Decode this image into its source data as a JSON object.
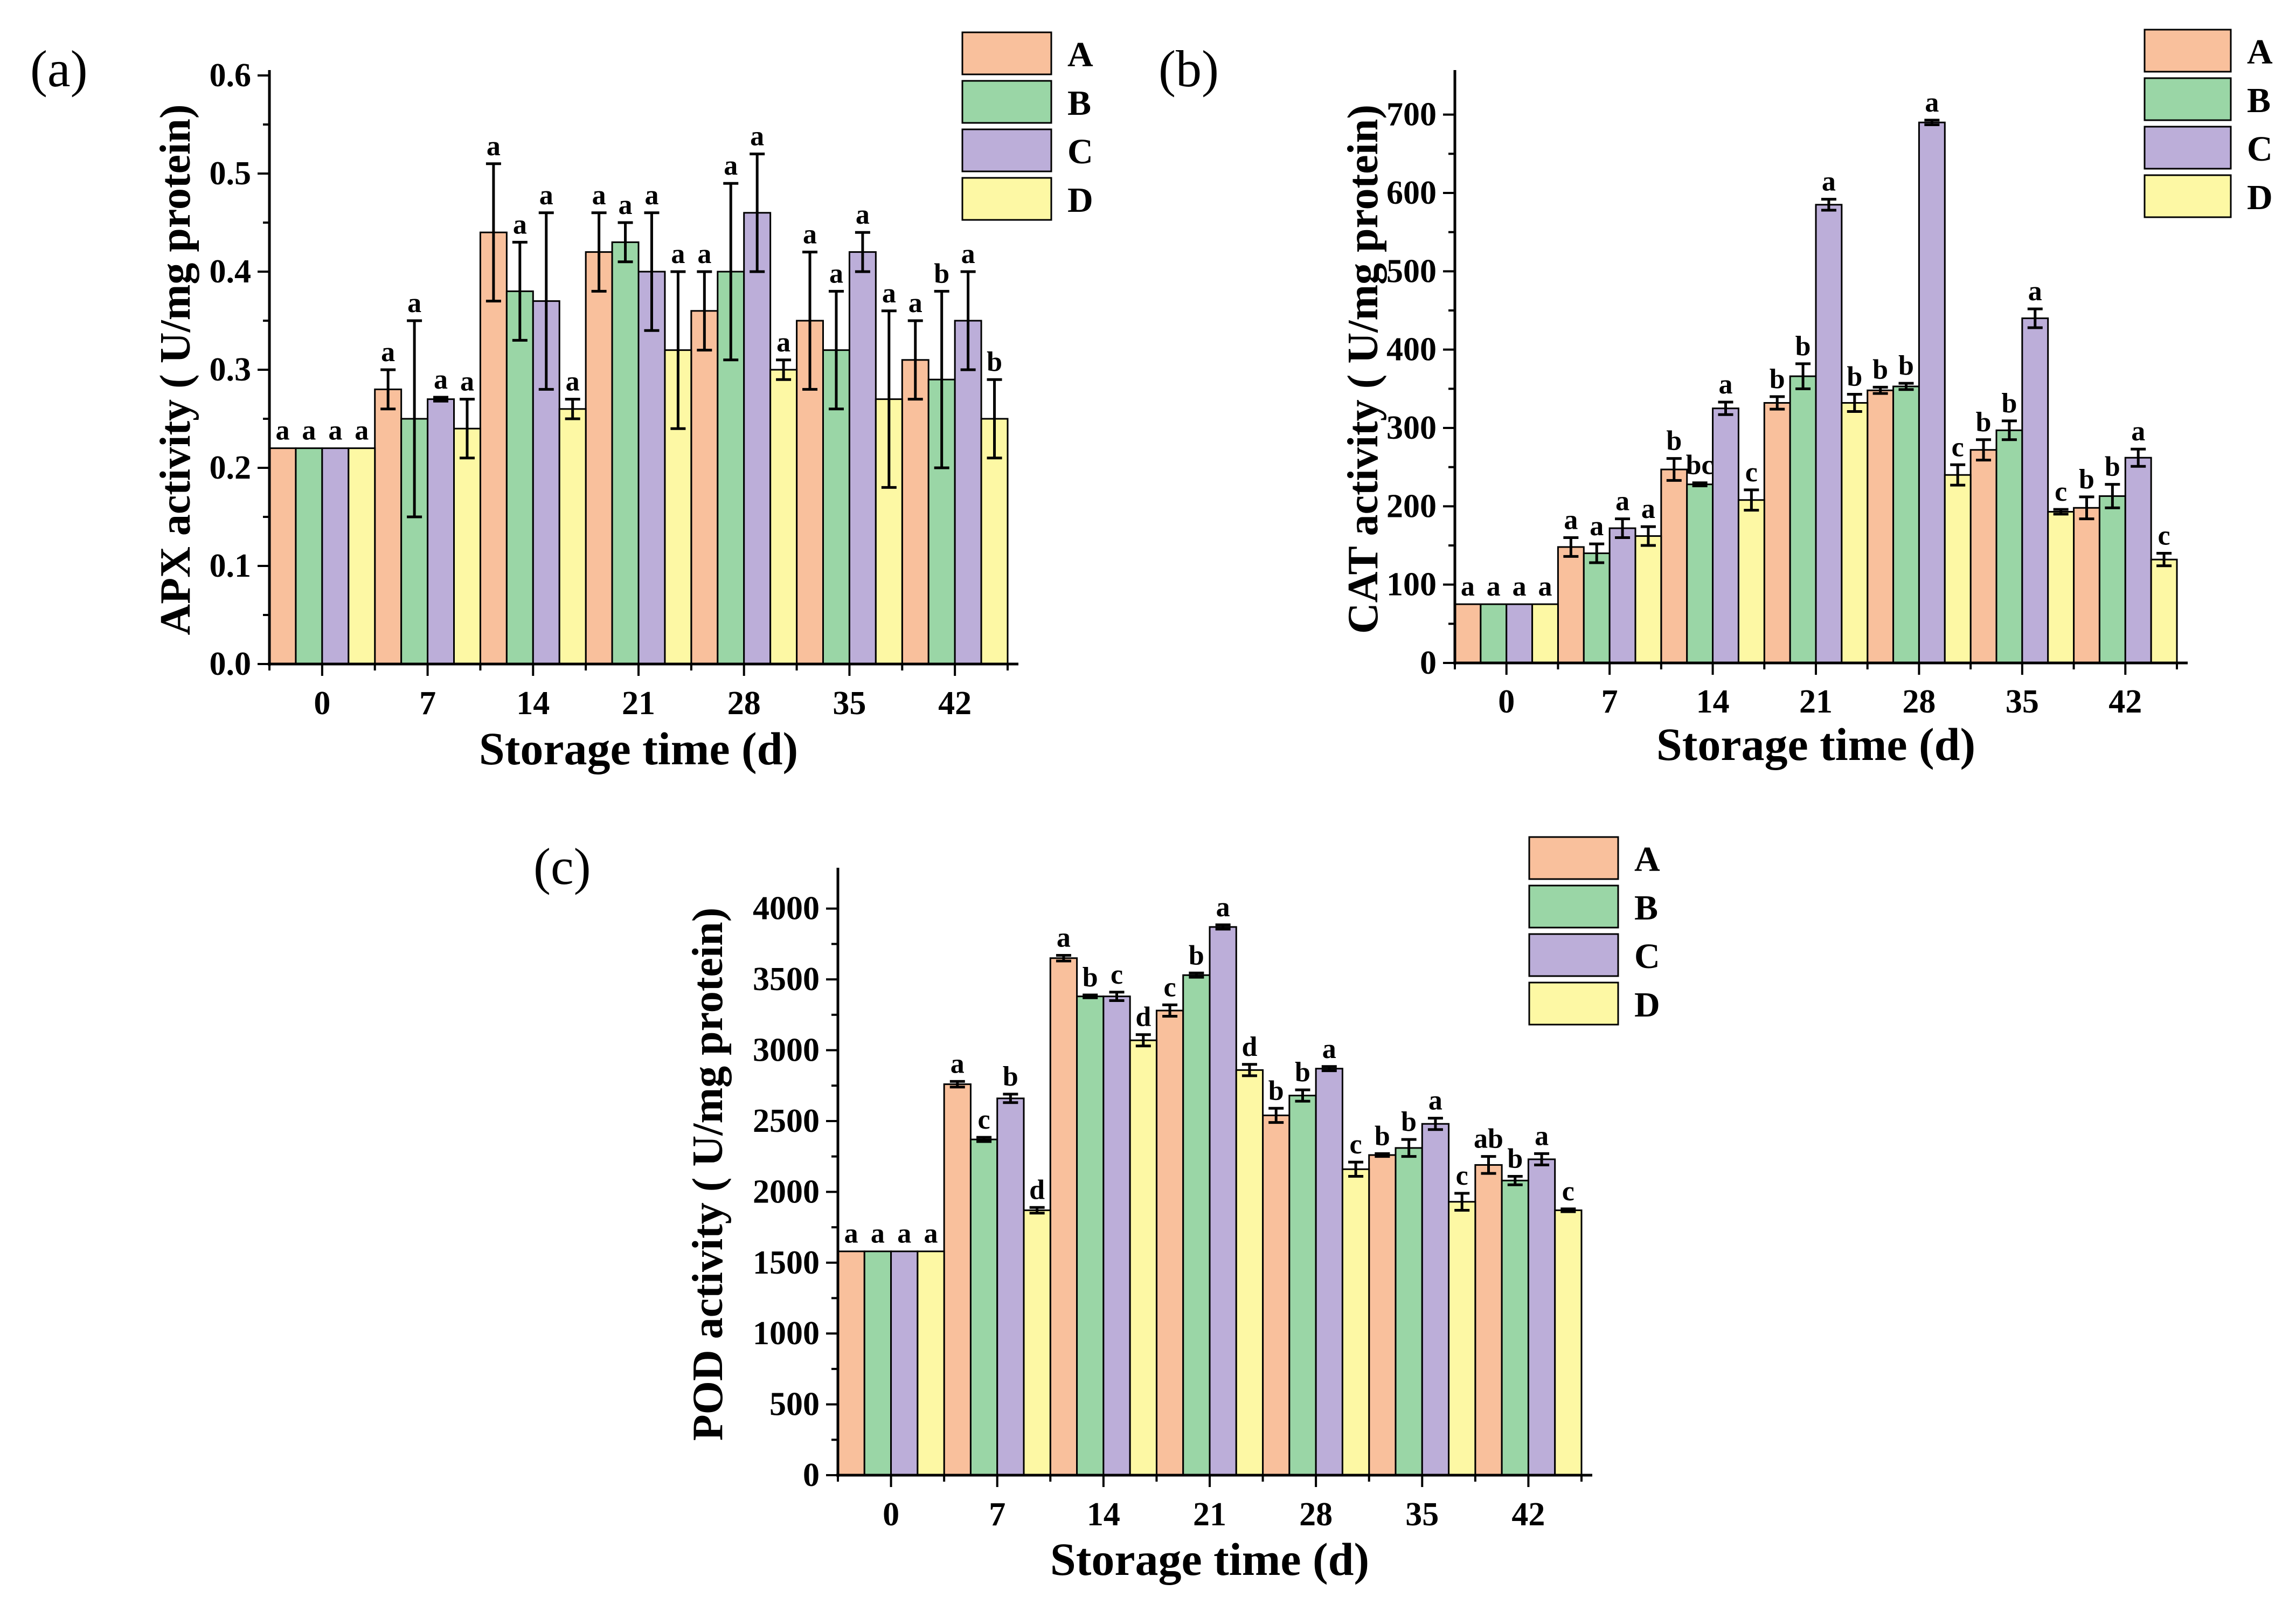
{
  "colors": {
    "A": "#f9c09c",
    "B": "#9ad6a6",
    "C": "#bcaed9",
    "D": "#fdf8a4"
  },
  "chart_data": [
    {
      "type": "bar",
      "panel_label": "(a)",
      "xlabel": "Storage time (d)",
      "ylabel": "APX activity ( U/mg protein)",
      "categories": [
        "0",
        "7",
        "14",
        "21",
        "28",
        "35",
        "42"
      ],
      "ylim": [
        0,
        0.6
      ],
      "yticks": [
        "0.0",
        "0.1",
        "0.2",
        "0.3",
        "0.4",
        "0.5",
        "0.6"
      ],
      "legend": [
        "A",
        "B",
        "C",
        "D"
      ],
      "legend_position": "top-right",
      "series": [
        {
          "name": "A",
          "values": [
            0.22,
            0.28,
            0.44,
            0.42,
            0.36,
            0.35,
            0.31
          ],
          "errors": [
            0,
            0.02,
            0.07,
            0.04,
            0.04,
            0.07,
            0.04
          ],
          "labels": [
            "a",
            "a",
            "a",
            "a",
            "a",
            "a",
            "a"
          ]
        },
        {
          "name": "B",
          "values": [
            0.22,
            0.25,
            0.38,
            0.43,
            0.4,
            0.32,
            0.29
          ],
          "errors": [
            0,
            0.1,
            0.05,
            0.02,
            0.09,
            0.06,
            0.09
          ],
          "labels": [
            "a",
            "a",
            "a",
            "a",
            "a",
            "a",
            "b"
          ]
        },
        {
          "name": "C",
          "values": [
            0.22,
            0.27,
            0.37,
            0.4,
            0.46,
            0.42,
            0.35
          ],
          "errors": [
            0,
            0.002,
            0.09,
            0.06,
            0.06,
            0.02,
            0.05
          ],
          "labels": [
            "a",
            "a",
            "a",
            "a",
            "a",
            "a",
            "a"
          ]
        },
        {
          "name": "D",
          "values": [
            0.22,
            0.24,
            0.26,
            0.32,
            0.3,
            0.27,
            0.25
          ],
          "errors": [
            0,
            0.03,
            0.01,
            0.08,
            0.01,
            0.09,
            0.04
          ],
          "labels": [
            "a",
            "a",
            "a",
            "a",
            "a",
            "a",
            "b"
          ]
        }
      ]
    },
    {
      "type": "bar",
      "panel_label": "(b)",
      "xlabel": "Storage time (d)",
      "ylabel": "CAT activity ( U/mg protein)",
      "categories": [
        "0",
        "7",
        "14",
        "21",
        "28",
        "35",
        "42"
      ],
      "ylim": [
        0,
        750
      ],
      "yticks": [
        "0",
        "100",
        "200",
        "300",
        "400",
        "500",
        "600",
        "700"
      ],
      "legend": [
        "A",
        "B",
        "C",
        "D"
      ],
      "legend_position": "top-right",
      "series": [
        {
          "name": "A",
          "values": [
            75,
            148,
            247,
            332,
            348,
            272,
            198
          ],
          "errors": [
            0,
            12,
            14,
            8,
            4,
            13,
            14
          ],
          "labels": [
            "a",
            "a",
            "b",
            "b",
            "b",
            "b",
            "b"
          ]
        },
        {
          "name": "B",
          "values": [
            75,
            140,
            228,
            366,
            353,
            297,
            213
          ],
          "errors": [
            0,
            12,
            2,
            16,
            4,
            12,
            15
          ],
          "labels": [
            "a",
            "a",
            "bc",
            "b",
            "b",
            "b",
            "b"
          ]
        },
        {
          "name": "C",
          "values": [
            75,
            172,
            325,
            585,
            690,
            440,
            262
          ],
          "errors": [
            0,
            12,
            8,
            7,
            3,
            12,
            11
          ],
          "labels": [
            "a",
            "a",
            "a",
            "a",
            "a",
            "a",
            "a"
          ]
        },
        {
          "name": "D",
          "values": [
            75,
            162,
            208,
            332,
            240,
            193,
            132
          ],
          "errors": [
            0,
            12,
            13,
            11,
            13,
            3,
            8
          ],
          "labels": [
            "a",
            "a",
            "c",
            "b",
            "c",
            "c",
            "c"
          ]
        }
      ]
    },
    {
      "type": "bar",
      "panel_label": "(c)",
      "xlabel": "Storage time (d)",
      "ylabel": "POD activity ( U/mg protein)",
      "categories": [
        "0",
        "7",
        "14",
        "21",
        "28",
        "35",
        "42"
      ],
      "ylim": [
        0,
        4250
      ],
      "yticks": [
        "0",
        "500",
        "1000",
        "1500",
        "2000",
        "2500",
        "3000",
        "3500",
        "4000"
      ],
      "legend": [
        "A",
        "B",
        "C",
        "D"
      ],
      "legend_position": "top-right",
      "series": [
        {
          "name": "A",
          "values": [
            1580,
            2760,
            3650,
            3280,
            2540,
            2260,
            2190
          ],
          "errors": [
            0,
            20,
            20,
            40,
            50,
            10,
            60
          ],
          "labels": [
            "a",
            "a",
            "a",
            "c",
            "b",
            "b",
            "ab"
          ]
        },
        {
          "name": "B",
          "values": [
            1580,
            2370,
            3380,
            3530,
            2680,
            2310,
            2080
          ],
          "errors": [
            0,
            15,
            10,
            15,
            40,
            60,
            30
          ],
          "labels": [
            "a",
            "c",
            "b",
            "b",
            "b",
            "b",
            "b"
          ]
        },
        {
          "name": "C",
          "values": [
            1580,
            2660,
            3380,
            3870,
            2870,
            2480,
            2230
          ],
          "errors": [
            0,
            30,
            30,
            15,
            15,
            40,
            40
          ],
          "labels": [
            "a",
            "b",
            "c",
            "a",
            "a",
            "a",
            "a"
          ]
        },
        {
          "name": "D",
          "values": [
            1580,
            1870,
            3070,
            2860,
            2160,
            1930,
            1870
          ],
          "errors": [
            0,
            20,
            40,
            40,
            50,
            60,
            10
          ],
          "labels": [
            "a",
            "d",
            "d",
            "d",
            "c",
            "c",
            "c"
          ]
        }
      ]
    }
  ]
}
